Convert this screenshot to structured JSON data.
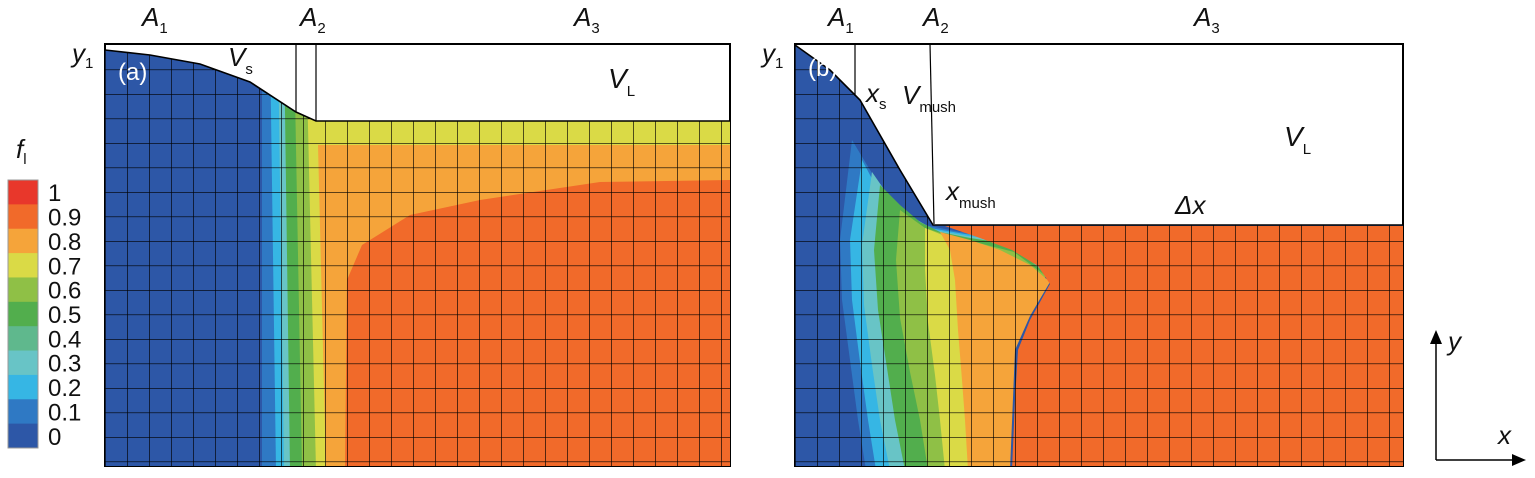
{
  "colorbar": {
    "variable": "f",
    "variable_sub": "l",
    "levels": [
      {
        "label": "1",
        "color": "#e8372b"
      },
      {
        "label": "0.9",
        "color": "#f16a2a"
      },
      {
        "label": "0.8",
        "color": "#f5a43a"
      },
      {
        "label": "0.7",
        "color": "#dada46"
      },
      {
        "label": "0.6",
        "color": "#8fc046"
      },
      {
        "label": "0.5",
        "color": "#52ae4d"
      },
      {
        "label": "0.4",
        "color": "#5fb88d"
      },
      {
        "label": "0.3",
        "color": "#68c4c6"
      },
      {
        "label": "0.2",
        "color": "#36b6e4"
      },
      {
        "label": "0.1",
        "color": "#2f79c4"
      },
      {
        "label": "0",
        "color": "#2d57a7"
      }
    ]
  },
  "panel_a": {
    "tag": "(a)",
    "zones": [
      {
        "main": "A",
        "sub": "1"
      },
      {
        "main": "A",
        "sub": "2"
      },
      {
        "main": "A",
        "sub": "3"
      }
    ],
    "y_label": {
      "main": "y",
      "sub": "1"
    },
    "solid_volume": {
      "main": "V",
      "sub": "s"
    },
    "liquid_volume": {
      "main": "V",
      "sub": "L"
    }
  },
  "panel_b": {
    "tag": "(b)",
    "zones": [
      {
        "main": "A",
        "sub": "1"
      },
      {
        "main": "A",
        "sub": "2"
      },
      {
        "main": "A",
        "sub": "3"
      }
    ],
    "y_label": {
      "main": "y",
      "sub": "1"
    },
    "solid_front": {
      "main": "x",
      "sub": "s"
    },
    "mush_volume": {
      "main": "V",
      "sub": "mush"
    },
    "liquid_volume": {
      "main": "V",
      "sub": "L"
    },
    "mush_front": {
      "main": "x",
      "sub": "mush"
    },
    "increment": "Δx"
  },
  "axes": {
    "x": "x",
    "y": "y"
  },
  "colors": {
    "deep_blue": "#2d57a7",
    "orange": "#f16a2a",
    "mesh": "#000000"
  }
}
